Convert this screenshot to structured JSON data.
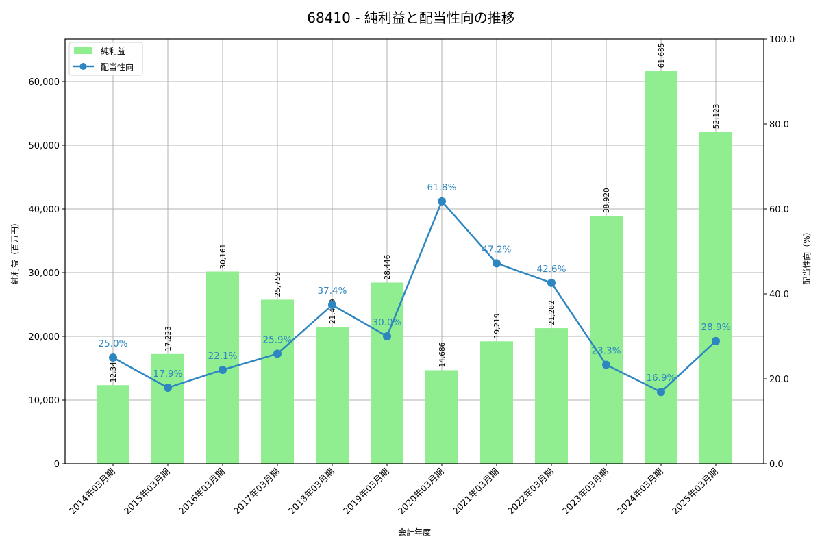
{
  "chart_data": {
    "type": "bar+line",
    "title": "68410 - 純利益と配当性向の推移",
    "xlabel": "会計年度",
    "ylabel_left": "純利益（百万円）",
    "ylabel_right": "配当性向（%）",
    "categories": [
      "2014年03月期",
      "2015年03月期",
      "2016年03月期",
      "2017年03月期",
      "2018年03月期",
      "2019年03月期",
      "2020年03月期",
      "2021年03月期",
      "2022年03月期",
      "2023年03月期",
      "2024年03月期",
      "2025年03月期"
    ],
    "series": [
      {
        "name": "純利益",
        "type": "bar",
        "axis": "left",
        "color": "#90ee90",
        "values": [
          12341,
          17223,
          30161,
          25759,
          21489,
          28446,
          14686,
          19219,
          21282,
          38920,
          61685,
          52123
        ],
        "labels": [
          "12,341",
          "17,223",
          "30,161",
          "25,759",
          "21,489",
          "28,446",
          "14,686",
          "19,219",
          "21,282",
          "38,920",
          "61,685",
          "52,123"
        ]
      },
      {
        "name": "配当性向",
        "type": "line",
        "axis": "right",
        "color": "#2e86c1",
        "values": [
          25.0,
          17.9,
          22.1,
          25.9,
          37.4,
          30.0,
          61.8,
          47.2,
          42.6,
          23.3,
          16.9,
          28.9
        ],
        "labels": [
          "25.0%",
          "17.9%",
          "22.1%",
          "25.9%",
          "37.4%",
          "30.0%",
          "61.8%",
          "47.2%",
          "42.6%",
          "23.3%",
          "16.9%",
          "28.9%"
        ]
      }
    ],
    "ylim_left": [
      0,
      66667
    ],
    "yticks_left": [
      "0",
      "10,000",
      "20,000",
      "30,000",
      "40,000",
      "50,000",
      "60,000"
    ],
    "ylim_right": [
      0,
      100
    ],
    "yticks_right": [
      "0.0",
      "20.0",
      "40.0",
      "60.0",
      "80.0",
      "100.0"
    ],
    "grid": true,
    "legend_position": "upper left"
  }
}
